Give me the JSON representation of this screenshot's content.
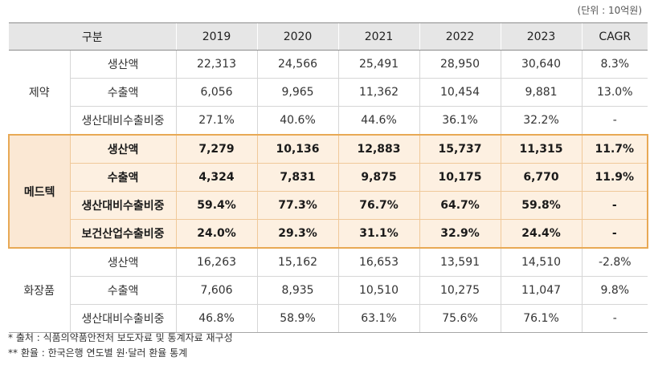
{
  "unit_note": "(단위 : 10억원)",
  "headers": [
    "구분",
    "2019",
    "2020",
    "2021",
    "2022",
    "2023",
    "CAGR"
  ],
  "groups": [
    {
      "name": "제약",
      "rows": [
        {
          "label": "생산액",
          "values": [
            "22,313",
            "24,566",
            "25,491",
            "28,950",
            "30,640",
            "8.3%"
          ]
        },
        {
          "label": "수출액",
          "values": [
            "6,056",
            "9,965",
            "11,362",
            "10,454",
            "9,881",
            "13.0%"
          ]
        },
        {
          "label": "생산대비수출비중",
          "values": [
            "27.1%",
            "40.6%",
            "44.6%",
            "36.1%",
            "32.2%",
            "-"
          ]
        }
      ]
    },
    {
      "name": "메드텍",
      "rows": [
        {
          "label": "생산액",
          "values": [
            "7,279",
            "10,136",
            "12,883",
            "15,737",
            "11,315",
            "11.7%"
          ]
        },
        {
          "label": "수출액",
          "values": [
            "4,324",
            "7,831",
            "9,875",
            "10,175",
            "6,770",
            "11.9%"
          ]
        },
        {
          "label": "생산대비수출비중",
          "values": [
            "59.4%",
            "77.3%",
            "76.7%",
            "64.7%",
            "59.8%",
            "-"
          ]
        },
        {
          "label": "보건산업수출비중",
          "values": [
            "24.0%",
            "29.3%",
            "31.1%",
            "32.9%",
            "24.4%",
            "-"
          ]
        }
      ]
    },
    {
      "name": "화장품",
      "rows": [
        {
          "label": "생산액",
          "values": [
            "16,263",
            "15,162",
            "16,653",
            "13,591",
            "14,510",
            "-2.8%"
          ]
        },
        {
          "label": "수출액",
          "values": [
            "7,606",
            "8,935",
            "10,510",
            "10,275",
            "11,047",
            "9.8%"
          ]
        },
        {
          "label": "생산대비수출비중",
          "values": [
            "46.8%",
            "58.9%",
            "63.1%",
            "75.6%",
            "76.1%",
            "-"
          ]
        }
      ]
    }
  ],
  "notes": [
    "* 출처 : 식품의약품안전처 보도자료 및 통계자료 재구성",
    "** 환율 : 한국은행 연도별 원·달러 환율 통계"
  ]
}
